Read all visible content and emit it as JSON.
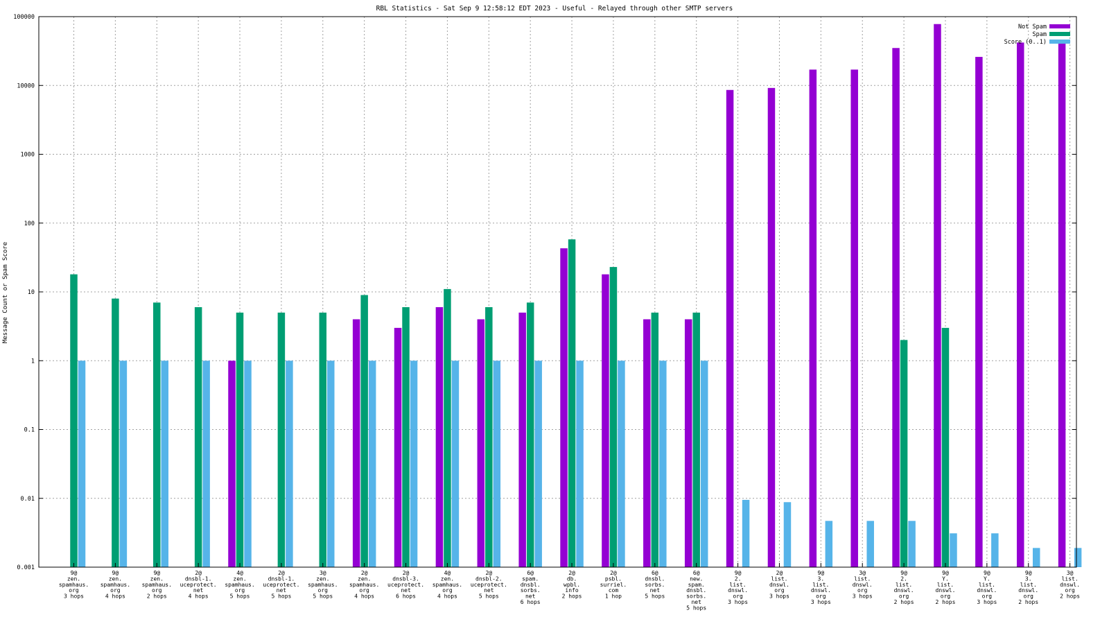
{
  "chart_data": {
    "type": "bar",
    "title": "RBL Statistics - Sat Sep  9 12:58:12 EDT 2023 - Useful - Relayed through other SMTP servers",
    "ylabel": "Message Count or Spam Score",
    "xlabel": "",
    "yscale": "log",
    "ylim": [
      0.001,
      100000
    ],
    "yticks": [
      "0.001",
      "0.01",
      "0.1",
      "1",
      "10",
      "100",
      "1000",
      "10000",
      "100000"
    ],
    "grid": true,
    "legend_position": "top-right",
    "categories": [
      [
        "9@",
        "zen.",
        "spamhaus.",
        "org",
        "3 hops"
      ],
      [
        "9@",
        "zen.",
        "spamhaus.",
        "org",
        "4 hops"
      ],
      [
        "9@",
        "zen.",
        "spamhaus.",
        "org",
        "2 hops"
      ],
      [
        "2@",
        "dnsbl-1.",
        "uceprotect.",
        "net",
        "4 hops"
      ],
      [
        "4@",
        "zen.",
        "spamhaus.",
        "org",
        "5 hops"
      ],
      [
        "2@",
        "dnsbl-1.",
        "uceprotect.",
        "net",
        "5 hops"
      ],
      [
        "3@",
        "zen.",
        "spamhaus.",
        "org",
        "5 hops"
      ],
      [
        "2@",
        "zen.",
        "spamhaus.",
        "org",
        "4 hops"
      ],
      [
        "2@",
        "dnsbl-3.",
        "uceprotect.",
        "net",
        "6 hops"
      ],
      [
        "4@",
        "zen.",
        "spamhaus.",
        "org",
        "4 hops"
      ],
      [
        "2@",
        "dnsbl-2.",
        "uceprotect.",
        "net",
        "5 hops"
      ],
      [
        "6@",
        "spam.",
        "dnsbl.",
        "sorbs.",
        "net",
        "6 hops"
      ],
      [
        "2@",
        "db.",
        "wpbl.",
        "info",
        "2 hops"
      ],
      [
        "2@",
        "psbl.",
        "surriel.",
        "com",
        "1 hop"
      ],
      [
        "6@",
        "dnsbl.",
        "sorbs.",
        "net",
        "5 hops"
      ],
      [
        "6@",
        "new.",
        "spam.",
        "dnsbl.",
        "sorbs.",
        "net",
        "5 hops"
      ],
      [
        "9@",
        "2.",
        "list.",
        "dnswl.",
        "org",
        "3 hops"
      ],
      [
        "2@",
        "list.",
        "dnswl.",
        "org",
        "3 hops"
      ],
      [
        "9@",
        "3.",
        "list.",
        "dnswl.",
        "org",
        "3 hops"
      ],
      [
        "3@",
        "list.",
        "dnswl.",
        "org",
        "3 hops"
      ],
      [
        "9@",
        "2.",
        "list.",
        "dnswl.",
        "org",
        "2 hops"
      ],
      [
        "9@",
        "Y.",
        "list.",
        "dnswl.",
        "org",
        "2 hops"
      ],
      [
        "9@",
        "Y.",
        "list.",
        "dnswl.",
        "org",
        "3 hops"
      ],
      [
        "9@",
        "3.",
        "list.",
        "dnswl.",
        "org",
        "2 hops"
      ],
      [
        "3@",
        "list.",
        "dnswl.",
        "org",
        "2 hops"
      ]
    ],
    "series": [
      {
        "name": "Not Spam",
        "color": "#9400d3",
        "values": [
          null,
          null,
          null,
          null,
          1,
          null,
          null,
          4,
          3,
          6,
          4,
          5,
          43,
          18,
          4,
          4,
          8600,
          9200,
          17000,
          17000,
          35000,
          78000,
          26000,
          42000,
          42000
        ]
      },
      {
        "name": "Spam",
        "color": "#009e73",
        "values": [
          18,
          8,
          7,
          6,
          5,
          5,
          5,
          9,
          6,
          11,
          6,
          7,
          58,
          23,
          5,
          5,
          null,
          null,
          null,
          null,
          2,
          3,
          null,
          null,
          null
        ]
      },
      {
        "name": "Score (0..1)",
        "color": "#56b4e9",
        "values": [
          1,
          1,
          1,
          1,
          1,
          1,
          1,
          1,
          1,
          1,
          1,
          1,
          1,
          1,
          1,
          1,
          0.0095,
          0.0088,
          0.0047,
          0.0047,
          0.0047,
          0.0031,
          0.0031,
          0.0019,
          0.0019
        ]
      }
    ]
  }
}
